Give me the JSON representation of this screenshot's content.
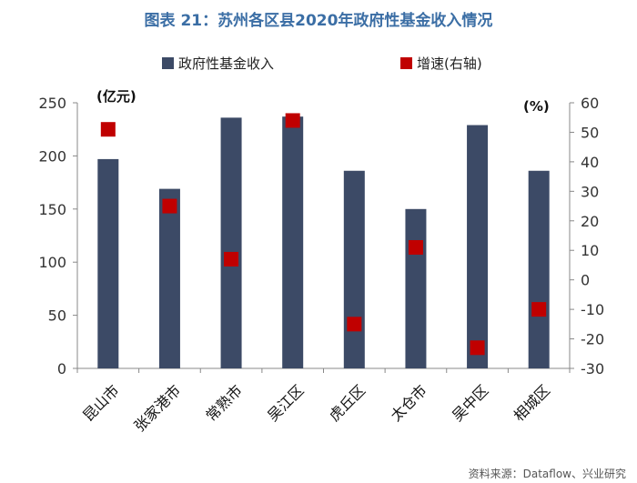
{
  "title": "图表 21：苏州各区县2020年政府性基金收入情况",
  "source": "资料来源：Dataflow、兴业研究",
  "chart_data": {
    "type": "bar",
    "title": "图表 21：苏州各区县2020年政府性基金收入情况",
    "categories": [
      "昆山市",
      "张家港市",
      "常熟市",
      "吴江区",
      "虎丘区",
      "太仓市",
      "吴中区",
      "相城区"
    ],
    "series": [
      {
        "name": "政府性基金收入",
        "type": "bar",
        "axis": "left",
        "values": [
          197,
          169,
          236,
          237,
          186,
          150,
          229,
          186
        ]
      },
      {
        "name": "增速(右轴)",
        "type": "scatter",
        "axis": "right",
        "values": [
          51,
          25,
          7,
          54,
          -15,
          11,
          -23,
          -10
        ]
      }
    ],
    "left_axis": {
      "label": "(亿元)",
      "min": 0,
      "max": 250,
      "ticks": [
        0,
        50,
        100,
        150,
        200,
        250
      ]
    },
    "right_axis": {
      "label": "(%)",
      "min": -30,
      "max": 60,
      "ticks": [
        -30,
        -20,
        -10,
        0,
        10,
        20,
        30,
        40,
        50,
        60
      ]
    },
    "colors": {
      "bar": "#3c4a66",
      "marker": "#c00000",
      "axis": "#888888"
    }
  }
}
